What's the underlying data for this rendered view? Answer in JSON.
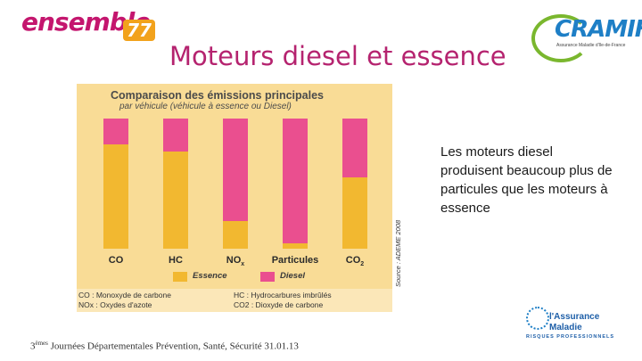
{
  "logos": {
    "ensemble_word": "ensemble",
    "ensemble_number": "77",
    "cramif_word": "CRAMIF",
    "cramif_tagline": "Assurance Maladie d'Ile-de-France",
    "am_line1": "l'Assurance",
    "am_line2": "Maladie",
    "am_line3": "RISQUES PROFESSIONNELS",
    "colors": {
      "ensemble": "#c4166e",
      "cramif": "#1e7fc6",
      "green": "#7ab72e"
    }
  },
  "slide": {
    "title": "Moteurs diesel et essence",
    "side_text": "Les moteurs diesel produisent beaucoup plus de particules que les moteurs à essence",
    "footer_prefix": "3",
    "footer_sup": "èmes",
    "footer_rest": " Journées Départementales Prévention, Santé, Sécurité 31.01.13"
  },
  "chart_data": {
    "type": "bar",
    "stacked": true,
    "title": "Comparaison des émissions principales",
    "subtitle": "par véhicule (véhicule à essence ou Diesel)",
    "categories": [
      "CO",
      "HC",
      "NOx",
      "Particules",
      "CO2"
    ],
    "series": [
      {
        "name": "Essence",
        "color": "#f2b830",
        "values": [
          80,
          75,
          21,
          4,
          55
        ]
      },
      {
        "name": "Diesel",
        "color": "#ea4f8f",
        "values": [
          20,
          25,
          79,
          96,
          45
        ]
      }
    ],
    "ylim": [
      0,
      100
    ],
    "unit": "%",
    "legend_position": "bottom",
    "source": "Source : ADEME 2008",
    "glossary": [
      {
        "abbr": "CO",
        "text": ": Monoxyde de carbone"
      },
      {
        "abbr": "HC",
        "text": ": Hydrocarbures imbrûlés"
      },
      {
        "abbr": "NOx",
        "text": ": Oxydes d'azote"
      },
      {
        "abbr": "CO2",
        "text": ": Dioxyde de carbone"
      }
    ]
  }
}
